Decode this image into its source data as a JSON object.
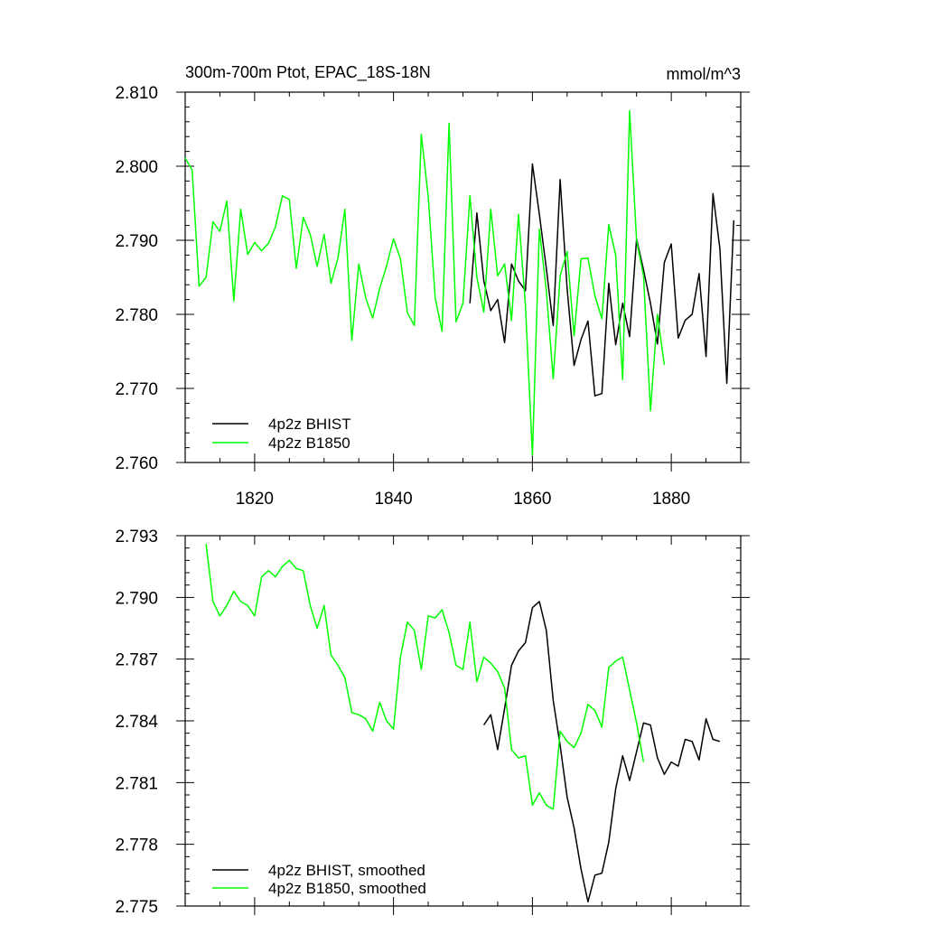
{
  "chart_data": [
    {
      "type": "line",
      "title": "300m-700m Ptot, EPAC_18S-18N",
      "units": "mmol/m^3",
      "xlim": [
        1810,
        1890
      ],
      "ylim": [
        2.76,
        2.81
      ],
      "xticks": [
        1820,
        1840,
        1860,
        1880
      ],
      "xtick_labels": [
        "1820",
        "1840",
        "1860",
        "1880"
      ],
      "yticks": [
        2.76,
        2.77,
        2.78,
        2.79,
        2.8,
        2.81
      ],
      "ytick_labels": [
        "2.760",
        "2.770",
        "2.780",
        "2.790",
        "2.800",
        "2.810"
      ],
      "grid": false,
      "legend_position": "bottom-left",
      "series": [
        {
          "name": "4p2z BHIST",
          "color": "#000000",
          "x": [
            1851,
            1852,
            1853,
            1854,
            1855,
            1856,
            1857,
            1858,
            1859,
            1860,
            1861,
            1862,
            1863,
            1864,
            1865,
            1866,
            1867,
            1868,
            1869,
            1870,
            1871,
            1872,
            1873,
            1874,
            1875,
            1876,
            1877,
            1878,
            1879,
            1880,
            1881,
            1882,
            1883,
            1884,
            1885,
            1886,
            1887,
            1888,
            1889
          ],
          "y": [
            2.7815,
            2.7937,
            2.7845,
            2.7805,
            2.782,
            2.7762,
            2.7868,
            2.7845,
            2.7832,
            2.8003,
            2.7935,
            2.7862,
            2.7785,
            2.7982,
            2.7835,
            2.7731,
            2.7766,
            2.7791,
            2.769,
            2.7693,
            2.7842,
            2.7759,
            2.7815,
            2.777,
            2.7902,
            2.786,
            2.7815,
            2.776,
            2.787,
            2.7895,
            2.7768,
            2.7792,
            2.78,
            2.7855,
            2.7743,
            2.7963,
            2.7889,
            2.7707,
            2.7927
          ]
        },
        {
          "name": "4p2z B1850",
          "color": "#00ff00",
          "x": [
            1810,
            1811,
            1812,
            1813,
            1814,
            1815,
            1816,
            1817,
            1818,
            1819,
            1820,
            1821,
            1822,
            1823,
            1824,
            1825,
            1826,
            1827,
            1828,
            1829,
            1830,
            1831,
            1832,
            1833,
            1834,
            1835,
            1836,
            1837,
            1838,
            1839,
            1840,
            1841,
            1842,
            1843,
            1844,
            1845,
            1846,
            1847,
            1848,
            1849,
            1850,
            1851,
            1852,
            1853,
            1854,
            1855,
            1856,
            1857,
            1858,
            1859,
            1860,
            1861,
            1862,
            1863,
            1864,
            1865,
            1866,
            1867,
            1868,
            1869,
            1870,
            1871,
            1872,
            1873,
            1874,
            1875,
            1876,
            1877,
            1878,
            1879
          ],
          "y": [
            2.8011,
            2.7995,
            2.7838,
            2.785,
            2.7925,
            2.7912,
            2.7953,
            2.7818,
            2.7942,
            2.7881,
            2.7897,
            2.7886,
            2.7896,
            2.7918,
            2.796,
            2.7955,
            2.7862,
            2.7931,
            2.7908,
            2.7865,
            2.7908,
            2.7842,
            2.7876,
            2.7942,
            2.7765,
            2.7868,
            2.7822,
            2.7795,
            2.7835,
            2.7865,
            2.7902,
            2.7875,
            2.7802,
            2.7785,
            2.8043,
            2.7958,
            2.7822,
            2.7777,
            2.8058,
            2.779,
            2.7815,
            2.796,
            2.785,
            2.7803,
            2.7942,
            2.7852,
            2.7868,
            2.7792,
            2.7935,
            2.7812,
            2.761,
            2.7915,
            2.7832,
            2.7713,
            2.7852,
            2.7885,
            2.7771,
            2.7875,
            2.7876,
            2.7825,
            2.7794,
            2.7921,
            2.788,
            2.7712,
            2.8075,
            2.79,
            2.7852,
            2.767,
            2.78,
            2.7732
          ]
        }
      ]
    },
    {
      "type": "line",
      "title": "",
      "xlim": [
        1810,
        1890
      ],
      "ylim": [
        2.775,
        2.793
      ],
      "xticks": [
        1820,
        1840,
        1860,
        1880
      ],
      "yticks": [
        2.775,
        2.778,
        2.781,
        2.784,
        2.787,
        2.79,
        2.793
      ],
      "ytick_labels": [
        "2.775",
        "2.778",
        "2.781",
        "2.784",
        "2.787",
        "2.790",
        "2.793"
      ],
      "grid": false,
      "legend_position": "bottom-left",
      "series": [
        {
          "name": "4p2z BHIST, smoothed",
          "color": "#000000",
          "x": [
            1853,
            1854,
            1855,
            1856,
            1857,
            1858,
            1859,
            1860,
            1861,
            1862,
            1863,
            1864,
            1865,
            1866,
            1867,
            1868,
            1869,
            1870,
            1871,
            1872,
            1873,
            1874,
            1875,
            1876,
            1877,
            1878,
            1879,
            1880,
            1881,
            1882,
            1883,
            1884,
            1885,
            1886,
            1887
          ],
          "y": [
            2.7838,
            2.7843,
            2.7826,
            2.7846,
            2.7867,
            2.7874,
            2.7878,
            2.7895,
            2.7898,
            2.7884,
            2.785,
            2.7828,
            2.7803,
            2.7788,
            2.7768,
            2.7752,
            2.7765,
            2.7766,
            2.7781,
            2.7807,
            2.7823,
            2.7811,
            2.7825,
            2.7839,
            2.7838,
            2.7822,
            2.7814,
            2.782,
            2.7818,
            2.7831,
            2.783,
            2.7821,
            2.7841,
            2.7831,
            2.783
          ]
        },
        {
          "name": "4p2z B1850, smoothed",
          "color": "#00ff00",
          "x": [
            1813,
            1814,
            1815,
            1816,
            1817,
            1818,
            1819,
            1820,
            1821,
            1822,
            1823,
            1824,
            1825,
            1826,
            1827,
            1828,
            1829,
            1830,
            1831,
            1832,
            1833,
            1834,
            1835,
            1836,
            1837,
            1838,
            1839,
            1840,
            1841,
            1842,
            1843,
            1844,
            1845,
            1846,
            1847,
            1848,
            1849,
            1850,
            1851,
            1852,
            1853,
            1854,
            1855,
            1856,
            1857,
            1858,
            1859,
            1860,
            1861,
            1862,
            1863,
            1864,
            1865,
            1866,
            1867,
            1868,
            1869,
            1870,
            1871,
            1872,
            1873,
            1874,
            1875,
            1876
          ],
          "y": [
            2.7926,
            2.7898,
            2.7891,
            2.7896,
            2.7903,
            2.7898,
            2.7896,
            2.7891,
            2.791,
            2.7913,
            2.791,
            2.7915,
            2.7918,
            2.7914,
            2.7913,
            2.7896,
            2.7885,
            2.7896,
            2.7872,
            2.7867,
            2.7861,
            2.7844,
            2.7843,
            2.7841,
            2.7835,
            2.7849,
            2.784,
            2.7836,
            2.7871,
            2.7888,
            2.7884,
            2.7865,
            2.7891,
            2.789,
            2.7894,
            2.7883,
            2.7867,
            2.7865,
            2.7888,
            2.7859,
            2.7871,
            2.7868,
            2.7864,
            2.7856,
            2.7826,
            2.7822,
            2.7823,
            2.7799,
            2.7805,
            2.7799,
            2.7797,
            2.7835,
            2.783,
            2.7827,
            2.7834,
            2.7848,
            2.7845,
            2.7837,
            2.7866,
            2.7869,
            2.7871,
            2.7855,
            2.7839,
            2.782
          ]
        }
      ]
    }
  ]
}
